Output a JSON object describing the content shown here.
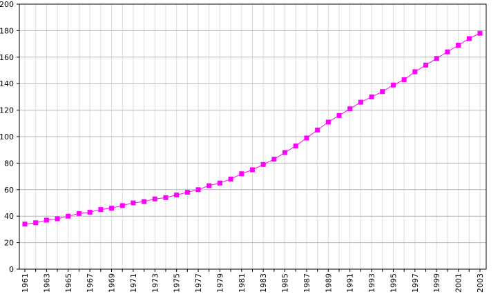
{
  "chart_data": {
    "type": "line",
    "title": "",
    "xlabel": "",
    "ylabel": "",
    "x": [
      1961,
      1962,
      1963,
      1964,
      1965,
      1966,
      1967,
      1968,
      1969,
      1970,
      1971,
      1972,
      1973,
      1974,
      1975,
      1976,
      1977,
      1978,
      1979,
      1980,
      1981,
      1982,
      1983,
      1984,
      1985,
      1986,
      1987,
      1988,
      1989,
      1990,
      1991,
      1992,
      1993,
      1994,
      1995,
      1996,
      1997,
      1998,
      1999,
      2000,
      2001,
      2002,
      2003
    ],
    "xlim": [
      1961,
      2003
    ],
    "ylim": [
      0,
      200
    ],
    "y_ticks": [
      0,
      20,
      40,
      60,
      80,
      100,
      120,
      140,
      160,
      180,
      200
    ],
    "y_tick_labels": [
      "0",
      "20",
      "40",
      "60",
      "80",
      "100",
      "120",
      "140",
      "160",
      "180",
      "200"
    ],
    "x_ticks": [
      1961,
      1963,
      1965,
      1967,
      1969,
      1971,
      1973,
      1975,
      1977,
      1979,
      1981,
      1983,
      1985,
      1987,
      1989,
      1991,
      1993,
      1995,
      1997,
      1999,
      2001,
      2003
    ],
    "x_tick_labels": [
      "1961",
      "1963",
      "1965",
      "1967",
      "1969",
      "1971",
      "1973",
      "1975",
      "1977",
      "1979",
      "1981",
      "1983",
      "1985",
      "1987",
      "1989",
      "1991",
      "1993",
      "1995",
      "1997",
      "1999",
      "2001",
      "2003"
    ],
    "grid": true,
    "series": [
      {
        "values": [
          34,
          35,
          37,
          38,
          40,
          42,
          43,
          45,
          46,
          48,
          50,
          51,
          53,
          54,
          56,
          58,
          60,
          63,
          65,
          68,
          72,
          75,
          79,
          83,
          88,
          93,
          99,
          105,
          111,
          116,
          121,
          126,
          130,
          134,
          139,
          143,
          149,
          154,
          159,
          164,
          169,
          174,
          178
        ],
        "color": "#ff00ff",
        "marker": "square"
      }
    ]
  }
}
